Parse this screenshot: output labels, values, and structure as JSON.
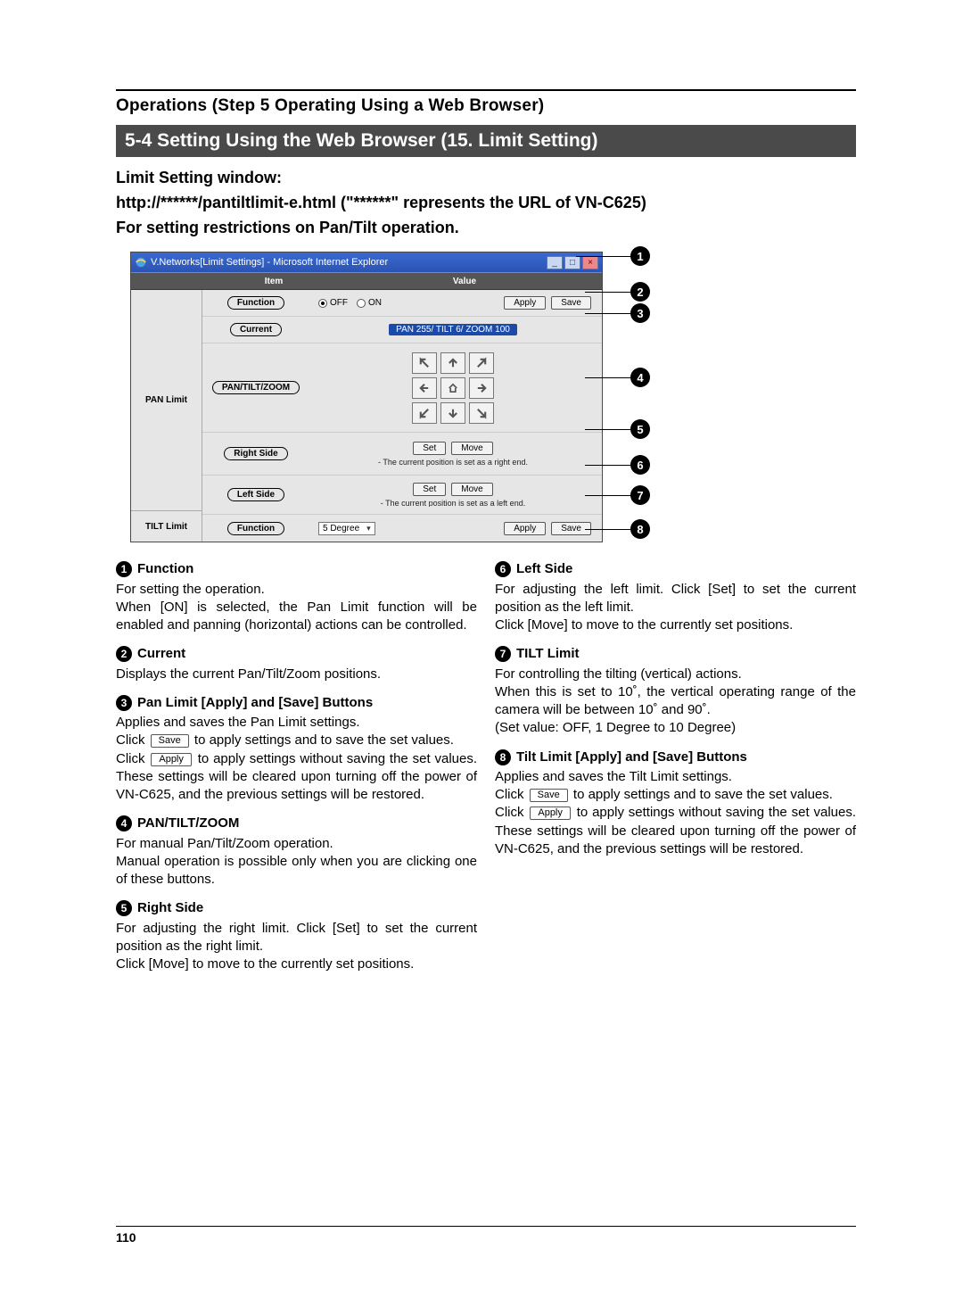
{
  "header": {
    "section": "Operations (Step 5 Operating Using a Web Browser)",
    "banner": "5-4 Setting Using the Web Browser (15. Limit Setting)",
    "intro_l1": "Limit Setting window:",
    "intro_l2": "http://******/pantiltlimit-e.html (\"******\" represents the URL of VN-C625)",
    "intro_l3": "For setting restrictions on Pan/Tilt operation."
  },
  "window": {
    "title": "V.Networks[Limit Settings] - Microsoft Internet Explorer",
    "col_item": "Item",
    "col_value": "Value",
    "pan_limit": "PAN Limit",
    "tilt_limit": "TILT Limit",
    "rows": {
      "function": {
        "label": "Function",
        "off": "OFF",
        "on": "ON",
        "apply": "Apply",
        "save": "Save"
      },
      "current": {
        "label": "Current",
        "status": "PAN 255/ TILT 6/ ZOOM 100"
      },
      "ptz": {
        "label": "PAN/TILT/ZOOM"
      },
      "right": {
        "label": "Right Side",
        "set": "Set",
        "move": "Move",
        "caption": "- The current position is set as a right end."
      },
      "left": {
        "label": "Left Side",
        "set": "Set",
        "move": "Move",
        "caption": "- The current position is set as a left end."
      },
      "tiltfn": {
        "label": "Function",
        "select": "5 Degree",
        "apply": "Apply",
        "save": "Save"
      }
    }
  },
  "callouts": {
    "1": "1",
    "2": "2",
    "3": "3",
    "4": "4",
    "5": "5",
    "6": "6",
    "7": "7",
    "8": "8"
  },
  "desc": {
    "c1": {
      "i1": {
        "n": "1",
        "h": "Function",
        "b": "For setting the operation.\nWhen [ON] is selected, the Pan Limit function will be enabled and panning (horizontal) actions can be controlled."
      },
      "i2": {
        "n": "2",
        "h": "Current",
        "b": "Displays the current Pan/Tilt/Zoom positions."
      },
      "i3": {
        "n": "3",
        "h": "Pan Limit [Apply] and [Save] Buttons",
        "b_pre": "Applies and saves the Pan Limit settings.\nClick ",
        "save": "Save",
        "b_mid": " to apply settings and to save the set values.\nClick ",
        "apply": "Apply",
        "b_post": " to apply settings without saving the set values. These settings will be cleared upon turning off the power of VN-C625, and the previous settings will be restored."
      },
      "i4": {
        "n": "4",
        "h": "PAN/TILT/ZOOM",
        "b": "For manual Pan/Tilt/Zoom operation.\nManual operation is possible only when you are clicking one of these buttons."
      },
      "i5": {
        "n": "5",
        "h": "Right Side",
        "b": "For adjusting the right limit. Click [Set] to set the current position as the right limit.\nClick [Move] to move to the currently set positions."
      }
    },
    "c2": {
      "i6": {
        "n": "6",
        "h": "Left Side",
        "b": "For adjusting the left limit. Click [Set] to set the current position as the left limit.\nClick [Move] to move to the currently set positions."
      },
      "i7": {
        "n": "7",
        "h": "TILT Limit",
        "b": "For controlling the tilting (vertical) actions.\nWhen this is set to 10˚, the vertical operating range of the camera will be between 10˚ and 90˚.\n(Set value: OFF, 1 Degree to 10 Degree)"
      },
      "i8": {
        "n": "8",
        "h": "Tilt Limit [Apply] and [Save] Buttons",
        "b_pre": "Applies and saves the Tilt Limit settings.\nClick ",
        "save": "Save",
        "b_mid": " to apply settings and to save the set values.\nClick ",
        "apply": "Apply",
        "b_post": " to apply settings without saving the set values. These settings will be cleared upon turning off the power of VN-C625, and the previous settings will be restored."
      }
    }
  },
  "page_number": "110"
}
